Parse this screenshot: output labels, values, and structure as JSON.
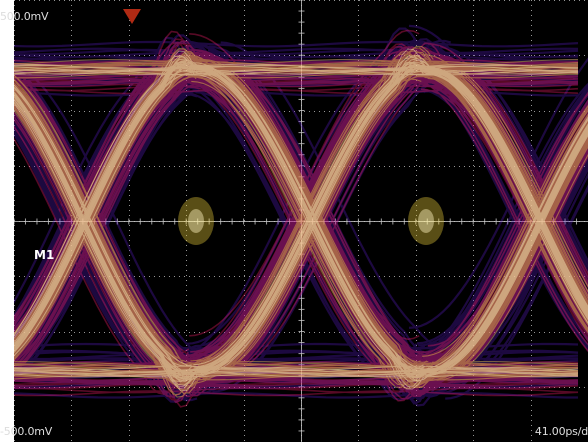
{
  "display": {
    "top_voltage": "500.0mV",
    "bottom_voltage": "-500.0mV",
    "timebase": "41.00ps/d",
    "math_label": "M1"
  },
  "colors": {
    "background": "#000000",
    "graticule": "#c8c8c8",
    "trace_low": "#5a1ec8",
    "trace_mid": "#ff1e6e",
    "trace_high": "#ffe040",
    "trace_peak": "#fff7c0",
    "trigger_marker": "#b02a14"
  },
  "icons": {
    "trigger": "trigger-position-marker-icon"
  }
}
